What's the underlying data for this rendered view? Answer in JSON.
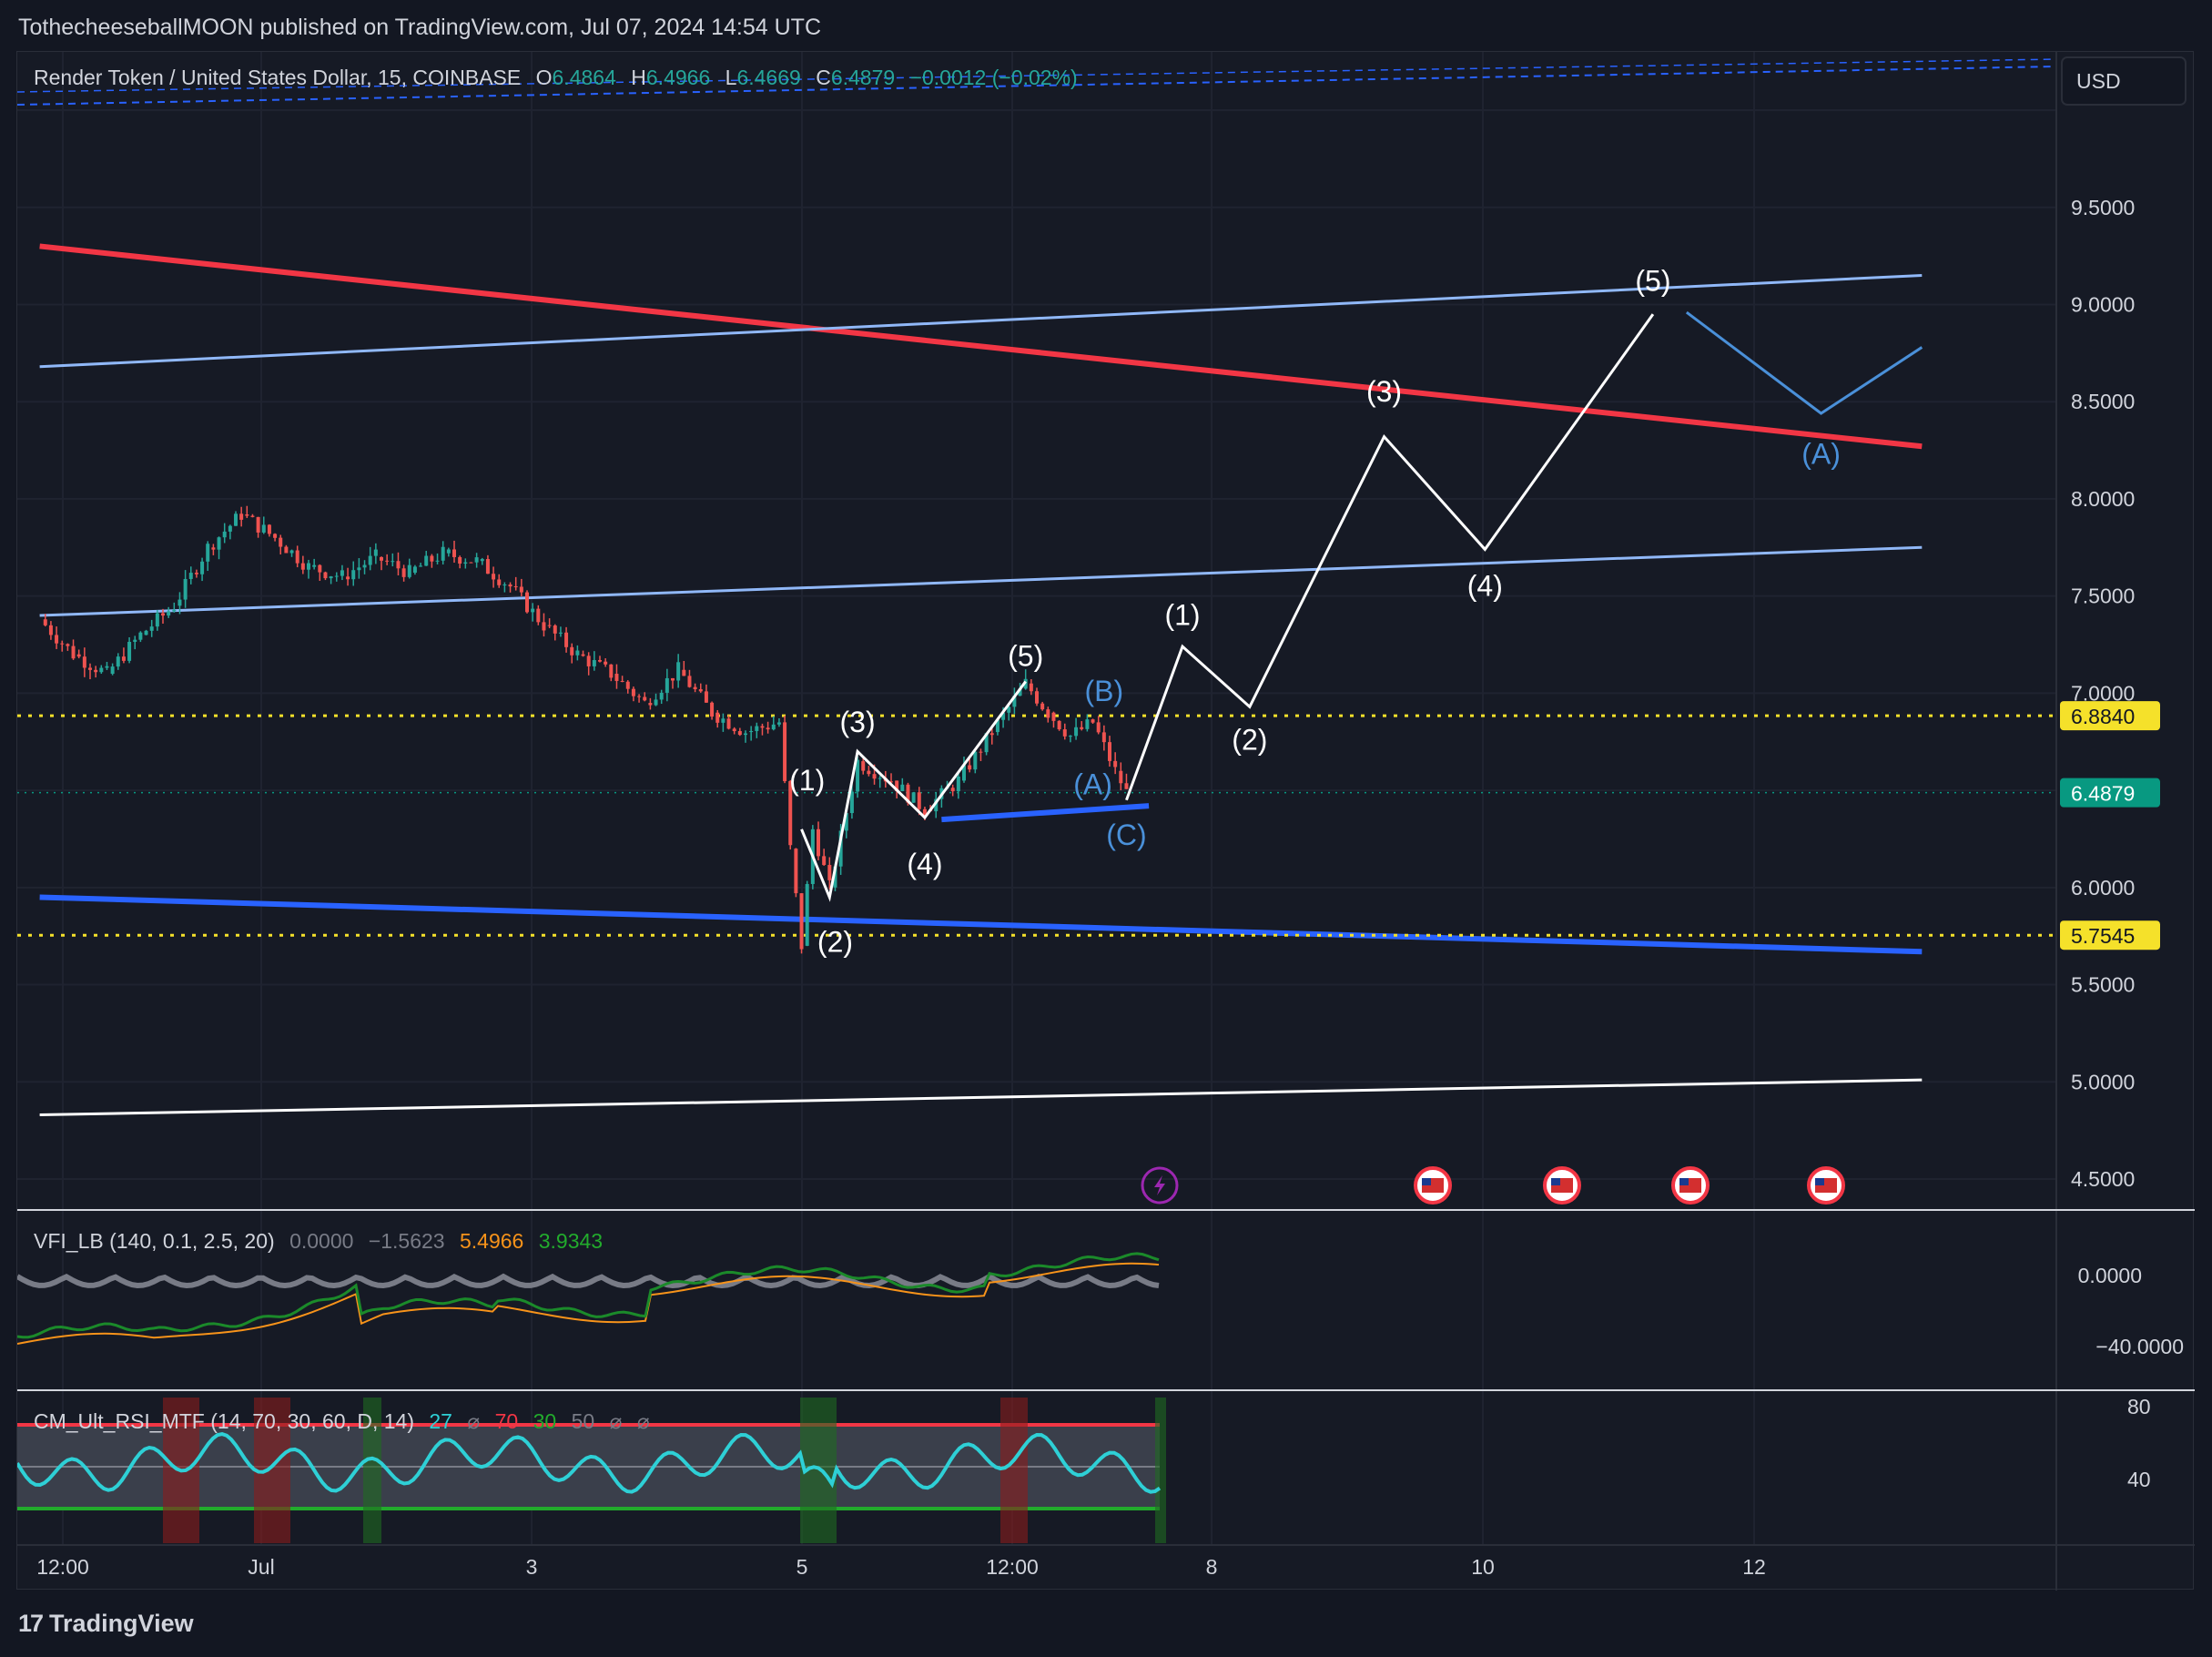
{
  "publisher": "TothecheeseballMOON published on TradingView.com, Jul 07, 2024 14:54 UTC",
  "brand": "TradingView",
  "brand_logo": "17",
  "legend": {
    "symbol": "Render Token / United States Dollar, 15, COINBASE",
    "o_label": "O",
    "o": "6.4864",
    "h_label": "H",
    "h": "6.4966",
    "l_label": "L",
    "l": "6.4669",
    "c_label": "C",
    "c": "6.4879",
    "change": "−0.0012 (−0.02%)"
  },
  "currency": "USD",
  "colors": {
    "background": "#161a25",
    "up": "#26a69a",
    "down": "#ef5350",
    "red_line": "#f23645",
    "blue_line": "#2962ff",
    "light_channel": "#90b8f8",
    "wave_blue": "#4a90d9",
    "yellow": "#f5e12a",
    "price_badge": "#089981"
  },
  "chart_data": {
    "type": "candlestick",
    "title": "Render Token / United States Dollar, 15, COINBASE",
    "price_axis": [
      "9.5000",
      "9.0000",
      "8.5000",
      "8.0000",
      "7.5000",
      "7.0000",
      "6.0000",
      "5.5000",
      "5.0000",
      "4.5000"
    ],
    "time_axis": [
      "12:00",
      "Jul",
      "3",
      "5",
      "12:00",
      "8",
      "10",
      "12"
    ],
    "ylim": [
      4.3,
      10.0
    ],
    "price_series": [
      [
        "Jun 29 12:00",
        7.38
      ],
      [
        "Jun 29 18:00",
        7.2
      ],
      [
        "Jun 30 00:00",
        7.1
      ],
      [
        "Jun 30 06:00",
        7.3
      ],
      [
        "Jun 30 12:00",
        7.45
      ],
      [
        "Jun 30 18:00",
        7.75
      ],
      [
        "Jul 1 00:00",
        7.92
      ],
      [
        "Jul 1 06:00",
        7.8
      ],
      [
        "Jul 1 12:00",
        7.65
      ],
      [
        "Jul 1 18:00",
        7.6
      ],
      [
        "Jul 2 00:00",
        7.7
      ],
      [
        "Jul 2 06:00",
        7.62
      ],
      [
        "Jul 2 12:00",
        7.72
      ],
      [
        "Jul 2 18:00",
        7.68
      ],
      [
        "Jul 3 00:00",
        7.55
      ],
      [
        "Jul 3 06:00",
        7.35
      ],
      [
        "Jul 3 12:00",
        7.2
      ],
      [
        "Jul 3 18:00",
        7.1
      ],
      [
        "Jul 4 00:00",
        6.95
      ],
      [
        "Jul 4 06:00",
        7.12
      ],
      [
        "Jul 4 12:00",
        6.9
      ],
      [
        "Jul 4 18:00",
        6.8
      ],
      [
        "Jul 5 00:00",
        6.85
      ],
      [
        "Jul 5 02:00",
        6.2
      ],
      [
        "Jul 5 04:00",
        5.7
      ],
      [
        "Jul 5 06:00",
        6.3
      ],
      [
        "Jul 5 09:00",
        6.0
      ],
      [
        "Jul 5 14:00",
        6.65
      ],
      [
        "Jul 5 20:00",
        6.55
      ],
      [
        "Jul 6 02:00",
        6.4
      ],
      [
        "Jul 6 08:00",
        6.55
      ],
      [
        "Jul 6 14:00",
        6.8
      ],
      [
        "Jul 6 20:00",
        7.05
      ],
      [
        "Jul 7 00:00",
        6.9
      ],
      [
        "Jul 7 04:00",
        6.78
      ],
      [
        "Jul 7 08:00",
        6.85
      ],
      [
        "Jul 7 12:00",
        6.6
      ],
      [
        "Jul 7 14:00",
        6.49
      ]
    ],
    "horizontal_levels": [
      {
        "label": "6.8840",
        "value": 6.884,
        "style": "dotted",
        "color": "yellow"
      },
      {
        "label": "5.7545",
        "value": 5.7545,
        "style": "dotted",
        "color": "yellow"
      },
      {
        "label": "6.4879",
        "value": 6.4879,
        "style": "current",
        "color": "green"
      }
    ],
    "trendlines": [
      {
        "name": "red-resistance",
        "from": [
          "Jun 29 12:00",
          9.3
        ],
        "to": [
          "Jul 13 12:00",
          8.27
        ]
      },
      {
        "name": "blue-support",
        "from": [
          "Jun 29 12:00",
          5.95
        ],
        "to": [
          "Jul 13 12:00",
          5.67
        ]
      },
      {
        "name": "upper-channel",
        "from": [
          "Jun 29 12:00",
          8.68
        ],
        "to": [
          "Jul 13 12:00",
          9.15
        ]
      },
      {
        "name": "mid-channel",
        "from": [
          "Jun 29 12:00",
          7.4
        ],
        "to": [
          "Jul 13 12:00",
          7.75
        ]
      },
      {
        "name": "white-base",
        "from": [
          "Jun 29 12:00",
          4.83
        ],
        "to": [
          "Jul 13 12:00",
          5.01
        ]
      },
      {
        "name": "short-blue-support",
        "from": [
          "Jul 6 05:00",
          6.35
        ],
        "to": [
          "Jul 7 18:00",
          6.42
        ]
      }
    ],
    "wave_labels": {
      "past": [
        "(1)",
        "(2)",
        "(3)",
        "(4)",
        "(5)"
      ],
      "correction": [
        "(A)",
        "(B)",
        "(C)"
      ],
      "projection": [
        "(1)",
        "(2)",
        "(3)",
        "(4)",
        "(5)"
      ],
      "future_correction": [
        "(A)"
      ]
    },
    "projection_path": [
      [
        "Jul 7 14:00",
        6.45
      ],
      [
        "Jul 8 00:00",
        7.24
      ],
      [
        "Jul 8 12:00",
        6.93
      ],
      [
        "Jul 9 12:00",
        8.32
      ],
      [
        "Jul 10 06:00",
        7.74
      ],
      [
        "Jul 11 12:00",
        8.95
      ]
    ],
    "correction_path": [
      [
        "Jul 11 18:00",
        8.96
      ],
      [
        "Jul 12 18:00",
        8.44
      ],
      [
        "Jul 13 12:00",
        8.78
      ]
    ],
    "event_icons": [
      "lightning-icon",
      "us-flag-icon",
      "us-flag-icon",
      "us-flag-icon",
      "us-flag-icon"
    ]
  },
  "vfi": {
    "label": "VFI_LB (140, 0.1, 2.5, 20)",
    "v1": "0.0000",
    "v2": "−1.5623",
    "v3": "5.4966",
    "v4": "3.9343",
    "axis": [
      "0.0000",
      "−40.0000"
    ]
  },
  "rsi": {
    "label": "CM_Ult_RSI_MTF (14, 70, 30, 60, D, 14)",
    "v1": "27",
    "v2": "⌀",
    "v3": "70",
    "v4": "30",
    "v5": "50",
    "v6": "⌀",
    "v7": "⌀",
    "axis": [
      "80",
      "40"
    ]
  }
}
